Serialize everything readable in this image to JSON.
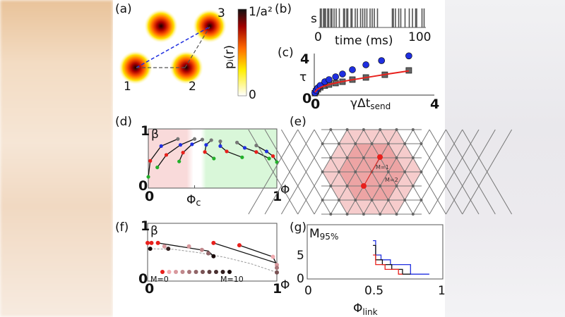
{
  "panels": {
    "a": {
      "label": "(a)",
      "sites": [
        "1",
        "2",
        "3"
      ],
      "colorbar_top": "1/a²",
      "colorbar_bottom": "0",
      "colorbar_label": "pᵢ(r)"
    },
    "b": {
      "label": "(b)",
      "ylabel": "s",
      "xlabel": "time (ms)",
      "x0": "0",
      "x1": "100"
    },
    "c": {
      "label": "(c)",
      "ylabel": "τ",
      "xlabel": "γΔt",
      "xlabel_sub": "send",
      "y0": "0",
      "y1": "4",
      "x0": "0",
      "x1": "4"
    },
    "d": {
      "label": "(d)",
      "ylabel": "β",
      "xlabel": "Φ",
      "xc": "Φ",
      "xc_sub": "c",
      "y0": "0",
      "y1": "1",
      "x0": "0",
      "x1": "1"
    },
    "e": {
      "label": "(e)",
      "m1": "M=1",
      "m2": "M=2"
    },
    "f": {
      "label": "(f)",
      "ylabel": "β",
      "xlabel": "Φ",
      "y0": "0",
      "y1": "1",
      "x0": "0",
      "x1": "1",
      "legend_start": "M=0",
      "legend_end": "M=10"
    },
    "g": {
      "label": "(g)",
      "ylabel": "M",
      "ylabel_sub": "95%",
      "xlabel": "Φ",
      "xlabel_sub": "link",
      "y0": "0",
      "y5": "5",
      "x0": "0",
      "x05": "0.5",
      "x1": "1"
    }
  },
  "colors": {
    "blue": "#1f2fe0",
    "red": "#e8201c",
    "green": "#22b02a",
    "gray": "#777777",
    "black": "#111111"
  },
  "chart_data": [
    {
      "panel": "b",
      "type": "scatter",
      "xlabel": "time (ms)",
      "ylabel": "s",
      "xlim": [
        0,
        100
      ],
      "spike_times": [
        1,
        2,
        4,
        5,
        6,
        8,
        9,
        11,
        12,
        14,
        16,
        19,
        23,
        24,
        26,
        27,
        30,
        31,
        34,
        36,
        39,
        41,
        43,
        45,
        48,
        50,
        52,
        55,
        69,
        70,
        72,
        75,
        77,
        81,
        85,
        88,
        91,
        92,
        97,
        99
      ]
    },
    {
      "panel": "c",
      "type": "scatter",
      "xlabel": "γΔt_send",
      "ylabel": "τ",
      "xlim": [
        0,
        4
      ],
      "ylim": [
        0,
        4
      ],
      "series": [
        {
          "marker": "circle",
          "color": "#1f2fe0",
          "x": [
            0.02,
            0.06,
            0.12,
            0.2,
            0.35,
            0.49,
            0.71,
            0.94,
            1.27,
            1.72,
            2.24,
            3.15
          ],
          "y": [
            0.25,
            0.5,
            0.75,
            1.0,
            1.38,
            1.6,
            1.89,
            2.18,
            2.62,
            3.13,
            3.56,
            4.05
          ]
        },
        {
          "marker": "square",
          "color": "#666666",
          "x": [
            0.02,
            0.06,
            0.12,
            0.2,
            0.35,
            0.49,
            0.71,
            0.94,
            1.27,
            1.72,
            2.35,
            3.15
          ],
          "y": [
            0.2,
            0.4,
            0.6,
            0.8,
            0.98,
            1.09,
            1.24,
            1.38,
            1.6,
            1.82,
            2.1,
            2.55
          ]
        },
        {
          "marker": "line",
          "color": "#e8201c",
          "x": [
            0.02,
            0.1,
            0.25,
            0.5,
            0.8,
            1.2,
            1.6,
            2.0,
            2.5,
            3.15
          ],
          "y": [
            0.3,
            0.6,
            0.85,
            1.1,
            1.32,
            1.55,
            1.75,
            1.95,
            2.2,
            2.5
          ]
        }
      ]
    },
    {
      "panel": "d",
      "type": "line",
      "xlabel": "Φ",
      "ylabel": "β",
      "xlim": [
        0,
        1
      ],
      "ylim": [
        0,
        1
      ],
      "phi_c": 0.36,
      "point_colors": [
        "green",
        "red",
        "blue",
        "gray"
      ],
      "series": [
        {
          "x": [
            0.0,
            0.015,
            0.1,
            0.23
          ],
          "y": [
            0.19,
            0.46,
            0.71,
            0.83
          ]
        },
        {
          "x": [
            0.07,
            0.14,
            0.25,
            0.36
          ],
          "y": [
            0.35,
            0.56,
            0.73,
            0.83
          ]
        },
        {
          "x": [
            0.24,
            0.27,
            0.34,
            0.42
          ],
          "y": [
            0.45,
            0.6,
            0.74,
            0.82
          ]
        },
        {
          "x": [
            0.51,
            0.44,
            0.45,
            0.49
          ],
          "y": [
            0.5,
            0.61,
            0.73,
            0.81
          ]
        },
        {
          "x": [
            0.73,
            0.61,
            0.56,
            0.56
          ],
          "y": [
            0.52,
            0.62,
            0.71,
            0.79
          ]
        },
        {
          "x": [
            0.94,
            0.84,
            0.75,
            0.69
          ],
          "y": [
            0.5,
            0.61,
            0.68,
            0.77
          ]
        },
        {
          "x": [
            1.0,
            0.97,
            0.92,
            0.84
          ],
          "y": [
            0.44,
            0.54,
            0.62,
            0.72
          ]
        }
      ]
    },
    {
      "panel": "f",
      "type": "scatter",
      "xlabel": "Φ",
      "ylabel": "β",
      "xlim": [
        0,
        1
      ],
      "ylim": [
        0,
        1
      ],
      "points": [
        {
          "x": 0.0,
          "y": 0.66,
          "m": 0
        },
        {
          "x": 0.03,
          "y": 0.66,
          "m": 0
        },
        {
          "x": 0.08,
          "y": 0.66,
          "m": 0
        },
        {
          "x": 0.51,
          "y": 0.66,
          "m": 0
        },
        {
          "x": 0.71,
          "y": 0.62,
          "m": 0
        },
        {
          "x": 0.13,
          "y": 0.6,
          "m": 2
        },
        {
          "x": 0.32,
          "y": 0.6,
          "m": 2
        },
        {
          "x": 0.42,
          "y": 0.54,
          "m": 3
        },
        {
          "x": 0.47,
          "y": 0.48,
          "m": 5
        },
        {
          "x": 0.97,
          "y": 0.42,
          "m": 1
        },
        {
          "x": 1.0,
          "y": 0.28,
          "m": 2
        },
        {
          "x": 1.0,
          "y": 0.23,
          "m": 4
        },
        {
          "x": 0.02,
          "y": 0.56,
          "m": 10
        },
        {
          "x": 0.16,
          "y": 0.56,
          "m": 9
        },
        {
          "x": 0.51,
          "y": 0.43,
          "m": 10
        },
        {
          "x": 1.0,
          "y": 0.15,
          "m": 6
        }
      ],
      "lines": [
        {
          "x": [
            0.08,
            0.47,
            0.51
          ],
          "y": [
            0.66,
            0.52,
            0.43
          ]
        },
        {
          "x": [
            0.51,
            1.0
          ],
          "y": [
            0.66,
            0.31
          ]
        },
        {
          "x": [
            0.71,
            0.97,
            1.0
          ],
          "y": [
            0.62,
            0.42,
            0.28
          ]
        }
      ],
      "dashed_curve": {
        "x": [
          0.02,
          0.2,
          0.4,
          0.6,
          0.8,
          1.0
        ],
        "y": [
          0.56,
          0.55,
          0.49,
          0.41,
          0.3,
          0.15
        ]
      },
      "legend_m": [
        0,
        1,
        2,
        3,
        4,
        5,
        6,
        7,
        8,
        9,
        10
      ]
    },
    {
      "panel": "g",
      "type": "line",
      "xlabel": "Φ_link",
      "ylabel": "M_95%",
      "xlim": [
        0,
        1
      ],
      "ylim": [
        0,
        11
      ],
      "series": [
        {
          "color": "#1f2fe0",
          "x": [
            0.49,
            0.51,
            0.51,
            0.55,
            0.55,
            0.62,
            0.62,
            0.77,
            0.77,
            0.91
          ],
          "y": [
            8,
            8,
            5,
            5,
            4,
            4,
            3,
            3,
            1,
            1
          ]
        },
        {
          "color": "#111111",
          "x": [
            0.49,
            0.51,
            0.51,
            0.56,
            0.56,
            0.63,
            0.63,
            0.71,
            0.71,
            0.77
          ],
          "y": [
            7,
            7,
            4,
            4,
            3,
            3,
            2,
            2,
            1,
            1
          ]
        },
        {
          "color": "#e8201c",
          "x": [
            0.49,
            0.51,
            0.51,
            0.58,
            0.58,
            0.68,
            0.68,
            0.71
          ],
          "y": [
            5,
            5,
            3,
            3,
            2,
            2,
            1,
            1
          ]
        }
      ]
    }
  ]
}
